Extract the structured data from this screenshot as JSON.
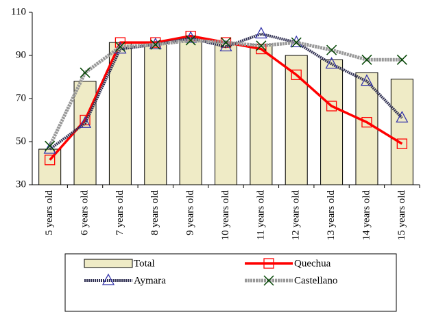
{
  "chart_data": {
    "type": "combo",
    "categories": [
      "5 years old",
      "6 years old",
      "7 years old",
      "8 years old",
      "9 years old",
      "10 years old",
      "11 years old",
      "12 years old",
      "13 years old",
      "14 years old",
      "15 years old"
    ],
    "series": [
      {
        "name": "Total",
        "type": "bar",
        "color": "#efebc6",
        "values": [
          46.5,
          78,
          96,
          96,
          98,
          96,
          95,
          90,
          88,
          82,
          79
        ]
      },
      {
        "name": "Quechua",
        "type": "line",
        "marker": "square",
        "color": "#ff0000",
        "values": [
          41.5,
          60,
          96,
          96,
          99,
          96,
          93,
          81,
          66.5,
          59,
          49
        ]
      },
      {
        "name": "Aymara",
        "type": "line",
        "marker": "triangle",
        "color": "#333355",
        "values": [
          46.5,
          58.5,
          93,
          95,
          98,
          94,
          100,
          96,
          86,
          78,
          61
        ]
      },
      {
        "name": "Castellano",
        "type": "line",
        "marker": "x",
        "color": "#999999",
        "values": [
          48,
          82,
          94,
          95,
          97,
          96,
          94.5,
          96,
          92.5,
          88,
          88
        ]
      }
    ],
    "ylim": [
      30,
      110
    ],
    "yticks": [
      30,
      50,
      70,
      90,
      110
    ]
  }
}
